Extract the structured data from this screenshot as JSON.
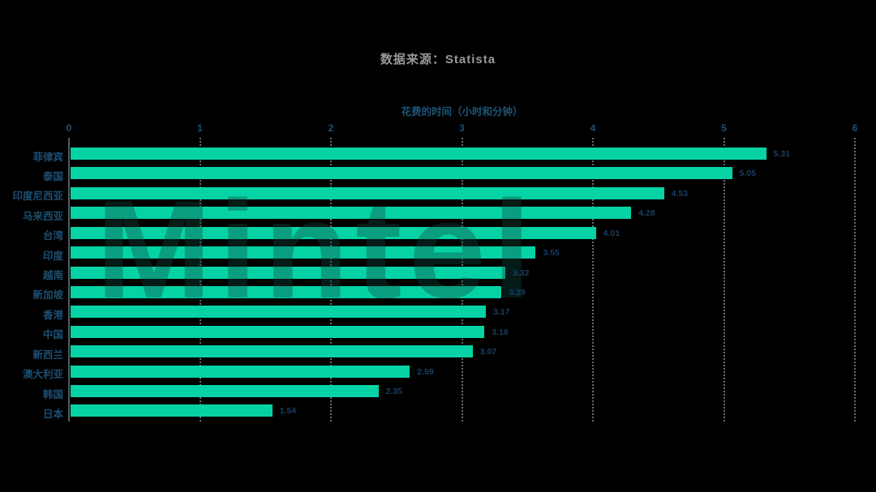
{
  "title": {
    "source_label": "数据来源：Statista"
  },
  "watermark": {
    "text": "Mintel"
  },
  "chart_data": {
    "type": "bar",
    "orientation": "horizontal",
    "title": "数据来源：Statista",
    "source": "Statista",
    "xlabel": "花费的时间（小时和分钟）",
    "categories": [
      "菲律宾",
      "泰国",
      "印度尼西亚",
      "马来西亚",
      "台湾",
      "印度",
      "越南",
      "新加坡",
      "香港",
      "中国",
      "新西兰",
      "澳大利亚",
      "韩国",
      "日本"
    ],
    "values": [
      5.31,
      5.05,
      4.53,
      4.28,
      4.01,
      3.55,
      3.32,
      3.29,
      3.17,
      3.16,
      3.07,
      2.59,
      2.35,
      1.54
    ],
    "value_labels": [
      "5.31",
      "5.05",
      "4.53",
      "4.28",
      "4.01",
      "3.55",
      "3.32",
      "3.29",
      "3.17",
      "3.16",
      "3.07",
      "2.59",
      "2.35",
      "1.54"
    ],
    "xlim": [
      0,
      6
    ],
    "xticks": [
      "0",
      "1",
      "2",
      "3",
      "4",
      "5",
      "6"
    ],
    "grid": "dotted-vertical-gridlines",
    "legend": "none",
    "bar_color": "#05d3a6",
    "background_color": "#000000",
    "category_label_color": "#1d4f73",
    "value_label_color": "#1b3e63",
    "axis_label_color": "#1c5578",
    "source_title_color": "#97999c"
  }
}
